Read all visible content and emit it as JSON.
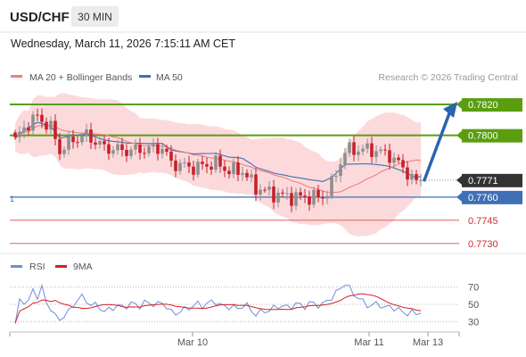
{
  "header": {
    "symbol": "USD/CHF",
    "timeframe": "30 MIN",
    "datetime": "Wednesday, March 11, 2026 7:15:11 AM CET"
  },
  "legend": {
    "ma20_label": "MA 20 + Bollinger Bands",
    "ma50_label": "MA 50",
    "rsi_label": "RSI",
    "rsi_ma_label": "9MA",
    "credit": "Research © 2026 Trading Central"
  },
  "colors": {
    "ma20": "#f08080",
    "bands_fill": "#fbd3d5",
    "ma50": "#3f6fb5",
    "resistance": "#5a9e10",
    "support": "#e06060",
    "pivot": "#3f6fb5",
    "arrow": "#2b63b0",
    "candle_up": "#8f8f8f",
    "candle_down": "#c8202a",
    "current_price_bg": "#333333",
    "rsi_line": "#6b8ed6",
    "rsi_ma": "#d62027"
  },
  "chart_data": {
    "type": "candlestick",
    "price_axis": {
      "ylim": [
        0.77235,
        0.7831
      ]
    },
    "levels": [
      {
        "label": "0.7820",
        "value": 0.782,
        "kind": "resistance"
      },
      {
        "label": "0.7800",
        "value": 0.78,
        "kind": "resistance"
      },
      {
        "label": "0.7771",
        "value": 0.7771,
        "kind": "current"
      },
      {
        "label": "0.7760",
        "value": 0.776,
        "kind": "pivot"
      },
      {
        "label": "0.7745",
        "value": 0.7745,
        "kind": "support"
      },
      {
        "label": "0.7730",
        "value": 0.773,
        "kind": "support"
      }
    ],
    "pivot_marker": "1",
    "x_ticks": [
      "Mar 10",
      "Mar 11",
      "Mar 13"
    ],
    "forecast_arrow": {
      "from": 0.7771,
      "to": 0.782
    },
    "rsi": {
      "ylim": [
        20,
        80
      ],
      "ticks": [
        "70",
        "50",
        "30"
      ]
    }
  }
}
